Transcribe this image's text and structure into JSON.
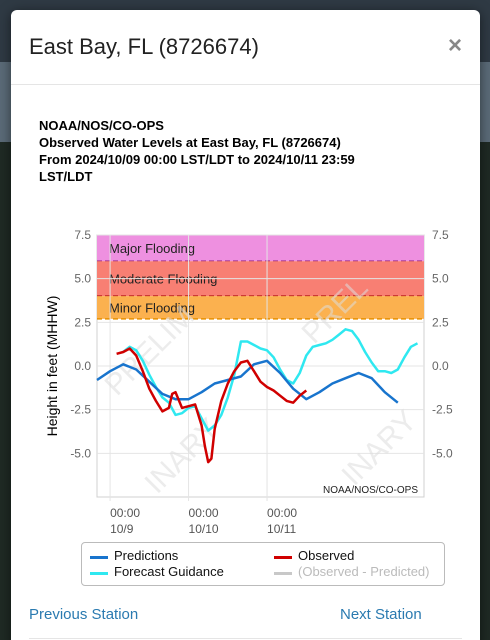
{
  "modal": {
    "title": "East Bay, FL (8726674)",
    "close_glyph": "×"
  },
  "chart_header": {
    "line1": "NOAA/NOS/CO-OPS",
    "line2": "Observed Water Levels at East Bay, FL (8726674)",
    "line3": "From 2024/10/09 00:00 LST/LDT to 2024/10/11 23:59",
    "line4": "LST/LDT"
  },
  "chart_data": {
    "type": "line",
    "ylabel": "Height in feet (MHHW)",
    "ylim": [
      -7.5,
      7.5
    ],
    "yticks": [
      "7.5",
      "5.0",
      "2.5",
      "0.0",
      "-2.5",
      "-5.0"
    ],
    "xticks": [
      {
        "time": "00:00",
        "date": "10/9"
      },
      {
        "time": "00:00",
        "date": "10/10"
      },
      {
        "time": "00:00",
        "date": "10/11"
      }
    ],
    "x_unit": "hours since 2024/10/09 00:00",
    "bands": [
      {
        "name": "Major Flooding",
        "from": 6.0,
        "to": 7.5,
        "color": "#ee90e0",
        "line": "#8b1a7a"
      },
      {
        "name": "Moderate Flooding",
        "from": 4.0,
        "to": 6.0,
        "color": "#f87f73",
        "line": "#b01010"
      },
      {
        "name": "Minor Flooding",
        "from": 2.7,
        "to": 4.0,
        "color": "#fbb14f",
        "line": "#e89000"
      }
    ],
    "watermark": "PRELIMINARY",
    "credit": "NOAA/NOS/CO-OPS",
    "series": [
      {
        "name": "Predictions",
        "color": "#1874cd",
        "x": [
          -4,
          0,
          4,
          8,
          12,
          16,
          20,
          24,
          28,
          32,
          36,
          40,
          44,
          48,
          52,
          56,
          60,
          64,
          68,
          72,
          76,
          80,
          84,
          88
        ],
        "y": [
          -0.8,
          -0.3,
          0.1,
          -0.2,
          -0.9,
          -1.6,
          -1.9,
          -1.9,
          -1.5,
          -1.0,
          -0.8,
          -0.6,
          0.1,
          0.3,
          -0.4,
          -1.3,
          -1.9,
          -1.5,
          -1.0,
          -0.7,
          -0.4,
          -0.7,
          -1.5,
          -2.1
        ]
      },
      {
        "name": "Observed",
        "color": "#d00000",
        "x": [
          2,
          4,
          6,
          8,
          10,
          12,
          14,
          16,
          18,
          19,
          20,
          22,
          24,
          26,
          28,
          29,
          30,
          31,
          32,
          34,
          36,
          38,
          40,
          42,
          44,
          46,
          48,
          50,
          52,
          54,
          56,
          58,
          60
        ],
        "y": [
          0.7,
          0.8,
          1.0,
          0.6,
          -0.3,
          -1.3,
          -2.0,
          -2.6,
          -2.4,
          -1.6,
          -1.5,
          -2.4,
          -2.3,
          -2.2,
          -3.4,
          -4.6,
          -5.5,
          -5.3,
          -3.6,
          -2.0,
          -1.0,
          -0.3,
          0.2,
          0.3,
          -0.3,
          -0.9,
          -1.2,
          -1.4,
          -1.7,
          -2.0,
          -2.1,
          -1.7,
          -1.4
        ]
      },
      {
        "name": "Forecast Guidance",
        "color": "#2fe8f0",
        "x": [
          4,
          6,
          8,
          10,
          12,
          14,
          16,
          18,
          20,
          22,
          24,
          26,
          28,
          30,
          32,
          34,
          36,
          38,
          40,
          42,
          44,
          46,
          48,
          50,
          52,
          54,
          56,
          58,
          60,
          62,
          64,
          66,
          68,
          70,
          72,
          74,
          76,
          78,
          80,
          82,
          84,
          86,
          88,
          90,
          92,
          94
        ],
        "y": [
          0.8,
          1.1,
          0.9,
          0.3,
          -0.5,
          -1.2,
          -1.8,
          -2.1,
          -2.8,
          -2.7,
          -2.4,
          -2.3,
          -3.0,
          -3.7,
          -3.4,
          -2.8,
          -1.8,
          -0.5,
          1.4,
          1.4,
          1.2,
          1.0,
          0.9,
          0.5,
          -0.2,
          -0.8,
          -1.0,
          -0.4,
          0.6,
          1.1,
          1.2,
          1.3,
          1.5,
          1.8,
          2.1,
          2.0,
          1.5,
          0.8,
          0.2,
          -0.3,
          -0.3,
          -0.4,
          -0.2,
          0.5,
          1.1,
          1.3
        ]
      },
      {
        "name": "(Observed - Predicted)",
        "color": "#c8c8c8",
        "x": [],
        "y": []
      }
    ]
  },
  "legend": {
    "predictions": "Predictions",
    "observed": "Observed",
    "forecast": "Forecast Guidance",
    "residual": "(Observed - Predicted)"
  },
  "nav": {
    "previous": "Previous Station",
    "next": "Next Station"
  }
}
